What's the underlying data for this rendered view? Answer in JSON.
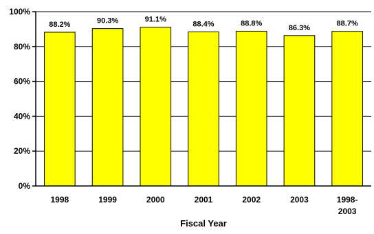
{
  "chart_data": {
    "type": "bar",
    "categories": [
      "1998",
      "1999",
      "2000",
      "2001",
      "2002",
      "2003",
      "1998-\n2003"
    ],
    "values": [
      88.2,
      90.3,
      91.1,
      88.4,
      88.8,
      86.3,
      88.7
    ],
    "data_labels": [
      "88.2%",
      "90.3%",
      "91.1%",
      "88.4%",
      "88.8%",
      "86.3%",
      "88.7%"
    ],
    "title": "",
    "xlabel": "Fiscal Year",
    "ylabel": "",
    "ylim": [
      0,
      100
    ],
    "yticks": [
      0,
      20,
      40,
      60,
      80,
      100
    ],
    "ytick_labels": [
      "0%",
      "20%",
      "40%",
      "60%",
      "80%",
      "100%"
    ],
    "grid": true,
    "legend": "none",
    "colors": {
      "bar_fill": "#ffff00",
      "bar_stroke": "#000000",
      "grid": "#000000"
    }
  }
}
